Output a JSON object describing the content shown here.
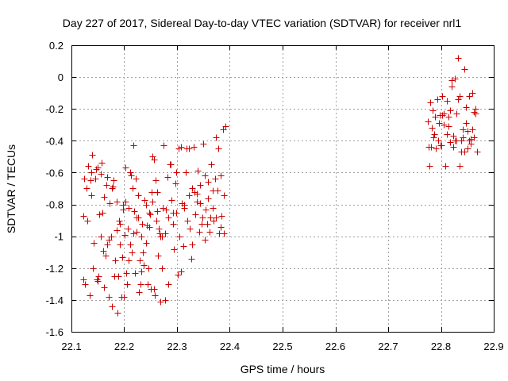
{
  "colors": {
    "series": "#cc0000",
    "grid": "#a0a0a0",
    "frame": "#000000"
  },
  "chart_data": {
    "type": "scatter",
    "title": "Day 227 of 2017, Sidereal Day-to-day VTEC variation (SDTVAR) for receiver nrl1",
    "xlabel": "GPS time / hours",
    "ylabel": "SDTVAR / TECUs",
    "xlim": [
      22.1,
      22.9
    ],
    "ylim": [
      -1.6,
      0.2
    ],
    "xticks": [
      22.1,
      22.2,
      22.3,
      22.4,
      22.5,
      22.6,
      22.7,
      22.8,
      22.9
    ],
    "xtick_labels": [
      "22.1",
      "22.2",
      "22.3",
      "22.4",
      "22.5",
      "22.6",
      "22.7",
      "22.8",
      "22.9"
    ],
    "yticks": [
      0.2,
      0,
      -0.2,
      -0.4,
      -0.6,
      -0.8,
      -1,
      -1.2,
      -1.4,
      -1.6
    ],
    "ytick_labels": [
      "0.2",
      "0",
      "-0.2",
      "-0.4",
      "-0.6",
      "-0.8",
      "-1",
      "-1.2",
      "-1.4",
      "-1.6"
    ],
    "grid": true,
    "legend": "none",
    "marker": "plus",
    "series": [
      {
        "x": [
          22.122,
          22.123,
          22.128,
          22.132,
          22.134,
          22.137,
          22.139,
          22.142,
          22.145,
          22.148,
          22.15,
          22.152,
          22.155,
          22.157,
          22.16,
          22.162,
          22.165,
          22.167,
          22.17,
          22.172,
          22.175,
          22.177,
          22.18,
          22.182,
          22.185,
          22.187,
          22.19,
          22.192,
          22.195,
          22.197,
          22.124,
          22.13,
          22.136,
          22.141,
          22.146,
          22.151,
          22.156,
          22.161,
          22.166,
          22.171,
          22.176,
          22.181,
          22.186,
          22.191,
          22.196,
          22.201,
          22.206,
          22.211,
          22.216,
          22.221,
          22.226,
          22.231,
          22.236,
          22.241,
          22.246,
          22.251,
          22.256,
          22.261,
          22.266,
          22.271,
          22.199,
          22.202,
          22.204,
          22.207,
          22.209,
          22.212,
          22.214,
          22.217,
          22.219,
          22.222,
          22.224,
          22.227,
          22.229,
          22.232,
          22.234,
          22.237,
          22.239,
          22.242,
          22.244,
          22.247,
          22.249,
          22.252,
          22.254,
          22.257,
          22.259,
          22.262,
          22.264,
          22.267,
          22.269,
          22.272,
          22.274,
          22.277,
          22.279,
          22.282,
          22.284,
          22.287,
          22.289,
          22.292,
          22.294,
          22.297,
          22.299,
          22.302,
          22.304,
          22.307,
          22.309,
          22.312,
          22.314,
          22.317,
          22.319,
          22.322,
          22.324,
          22.327,
          22.329,
          22.332,
          22.334,
          22.337,
          22.339,
          22.342,
          22.344,
          22.347,
          22.349,
          22.352,
          22.354,
          22.357,
          22.359,
          22.362,
          22.364,
          22.367,
          22.369,
          22.372,
          22.374,
          22.377,
          22.379,
          22.382,
          22.384,
          22.387,
          22.389,
          22.391,
          22.126,
          22.138,
          22.149,
          22.158,
          22.168,
          22.178,
          22.188,
          22.198,
          22.208,
          22.218,
          22.228,
          22.238,
          22.248,
          22.258,
          22.268,
          22.278,
          22.288,
          22.298,
          22.308,
          22.318,
          22.328,
          22.338,
          22.348,
          22.358,
          22.368,
          22.378,
          22.388,
          22.203,
          22.213,
          22.223,
          22.233,
          22.243,
          22.253,
          22.263,
          22.273,
          22.283,
          22.293,
          22.303,
          22.313,
          22.323,
          22.333,
          22.343,
          22.353,
          22.363,
          22.373,
          22.383,
          22.775,
          22.778,
          22.781,
          22.784,
          22.787,
          22.79,
          22.793,
          22.796,
          22.799,
          22.802,
          22.805,
          22.808,
          22.811,
          22.814,
          22.817,
          22.82,
          22.823,
          22.826,
          22.829,
          22.832,
          22.835,
          22.838,
          22.841,
          22.844,
          22.847,
          22.85,
          22.853,
          22.856,
          22.859,
          22.862,
          22.865,
          22.776,
          22.782,
          22.788,
          22.794,
          22.8,
          22.806,
          22.812,
          22.818,
          22.824,
          22.83,
          22.836,
          22.842,
          22.848,
          22.854,
          22.86,
          22.866,
          22.779,
          22.786,
          22.797,
          22.803,
          22.809,
          22.815,
          22.821,
          22.827,
          22.833,
          22.839,
          22.845,
          22.851,
          22.857,
          22.863,
          22.868
        ],
        "y": [
          -0.87,
          -1.27,
          -0.7,
          -0.56,
          -1.37,
          -0.74,
          -0.49,
          -1.04,
          -0.64,
          -1.27,
          -0.57,
          -0.86,
          -1.0,
          -0.54,
          -1.09,
          -0.75,
          -1.12,
          -0.63,
          -1.38,
          -0.79,
          -1.0,
          -1.44,
          -0.65,
          -1.15,
          -0.78,
          -1.48,
          -0.9,
          -1.05,
          -1.38,
          -0.8,
          -0.64,
          -0.9,
          -0.65,
          -1.2,
          -0.58,
          -1.25,
          -0.61,
          -1.32,
          -0.68,
          -1.02,
          -0.7,
          -1.25,
          -0.96,
          -0.92,
          -1.13,
          -0.99,
          -1.3,
          -1.05,
          -0.7,
          -1.23,
          -0.74,
          -1.3,
          -1.1,
          -0.8,
          -1.2,
          -1.33,
          -0.52,
          -0.9,
          -0.95,
          -1.2,
          -1.38,
          -0.57,
          -1.23,
          -0.95,
          -0.82,
          -0.6,
          -1.1,
          -0.98,
          -0.84,
          -0.64,
          -0.97,
          -0.88,
          -1.15,
          -1.0,
          -0.92,
          -1.18,
          -0.77,
          -1.04,
          -1.3,
          -0.94,
          -0.86,
          -0.72,
          -0.5,
          -1.33,
          -0.65,
          -0.84,
          -1.12,
          -0.98,
          -1.41,
          -1.0,
          -0.43,
          -0.98,
          -0.83,
          -0.63,
          -1.3,
          -0.55,
          -0.77,
          -0.92,
          -1.08,
          -0.67,
          -0.6,
          -1.24,
          -1.0,
          -0.44,
          -0.79,
          -1.06,
          -0.82,
          -0.6,
          -0.9,
          -0.74,
          -0.95,
          -1.14,
          -0.7,
          -0.44,
          -0.86,
          -0.73,
          -0.59,
          -0.97,
          -0.68,
          -0.92,
          -0.42,
          -0.62,
          -0.83,
          -0.92,
          -0.76,
          -0.97,
          -0.55,
          -0.82,
          -0.9,
          -0.64,
          -0.88,
          -0.71,
          -0.98,
          -0.62,
          -0.87,
          -0.33,
          -0.98,
          -0.31,
          -1.3,
          -0.6,
          -1.28,
          -0.85,
          -1.05,
          -0.69,
          -1.25,
          -0.83,
          -1.15,
          -0.43,
          -1.35,
          -0.77,
          -0.85,
          -1.37,
          -1.0,
          -1.4,
          -0.55,
          -0.85,
          -1.22,
          -0.45,
          -1.05,
          -0.78,
          -0.88,
          -0.66,
          -0.71,
          -0.45,
          -0.74,
          -0.78,
          -0.62,
          -0.88,
          -1.22,
          -0.93,
          -0.78,
          -0.72,
          -0.82,
          -0.88,
          -0.85,
          -0.45,
          -0.8,
          -0.45,
          -0.72,
          -0.79,
          -1.02,
          -0.88,
          -0.38,
          -0.94,
          -0.28,
          -0.56,
          -0.44,
          -0.21,
          -0.36,
          -0.45,
          -0.14,
          -0.29,
          -0.43,
          -0.24,
          -0.3,
          -0.56,
          -0.15,
          -0.31,
          -0.41,
          -0.06,
          -0.37,
          -0.01,
          -0.23,
          0.12,
          -0.56,
          -0.4,
          -0.33,
          -0.47,
          -0.29,
          -0.45,
          -0.12,
          -0.39,
          -0.1,
          -0.38,
          -0.23,
          -0.44,
          -0.32,
          -0.25,
          -0.4,
          -0.43,
          -0.23,
          -0.36,
          -0.21,
          -0.44,
          -0.4,
          -0.12,
          -0.38,
          -0.19,
          -0.4,
          -0.33,
          -0.2,
          -0.16,
          -0.38,
          -0.24,
          -0.12,
          -0.56,
          -0.25,
          -0.02,
          -0.4,
          -0.14,
          -0.47,
          0.05,
          -0.34,
          -0.42,
          -0.22,
          -0.47
        ]
      }
    ]
  }
}
